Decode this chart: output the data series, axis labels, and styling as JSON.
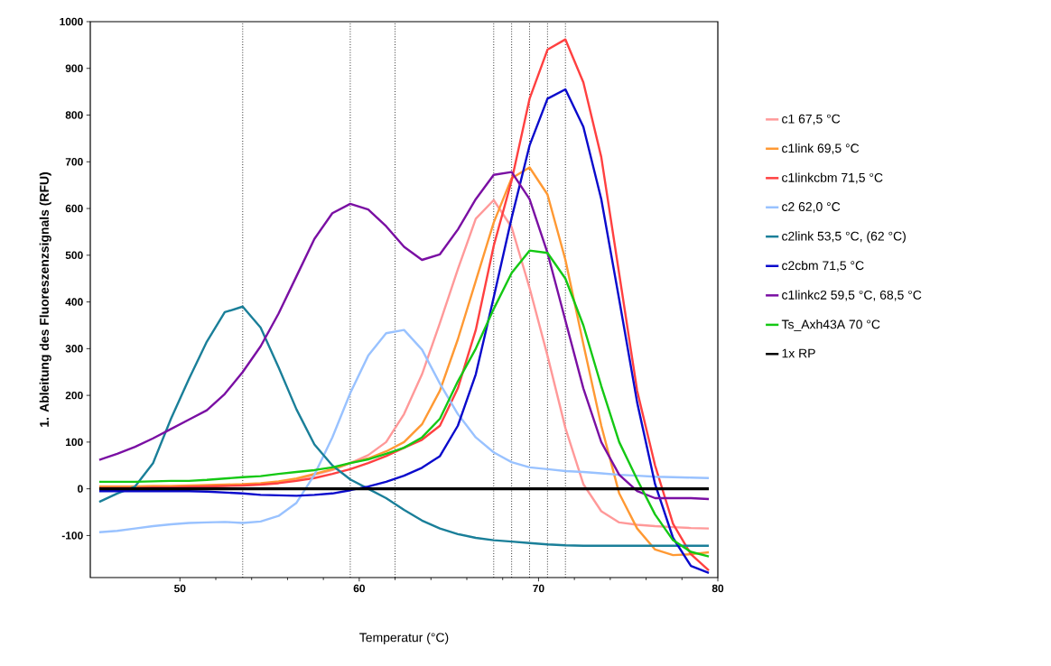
{
  "chart_data": {
    "type": "line",
    "xlabel": "Temperatur (°C)",
    "ylabel": "1. Ableitung des Fluoreszenzsignals (RFU)",
    "x": [
      45.5,
      46.5,
      47.5,
      48.5,
      49.5,
      50.5,
      51.5,
      52.5,
      53.5,
      54.5,
      55.5,
      56.5,
      57.5,
      58.5,
      59.5,
      60.5,
      61.5,
      62.5,
      63.5,
      64.5,
      65.5,
      66.5,
      67.5,
      68.5,
      69.5,
      70.5,
      71.5,
      72.5,
      73.5,
      74.5,
      75.5,
      76.5,
      77.5,
      78.5,
      79.5
    ],
    "xlim": [
      45,
      80
    ],
    "xticks": [
      50,
      60,
      70,
      80
    ],
    "ylim": [
      -190,
      1000
    ],
    "yticks": [
      -100,
      0,
      100,
      200,
      300,
      400,
      500,
      600,
      700,
      800,
      900,
      1000
    ],
    "legend": "right",
    "line_style": "solid",
    "ref_lines": [
      {
        "axis": "x",
        "value": 53.5,
        "color": "#000000",
        "line_style": "dotted"
      },
      {
        "axis": "x",
        "value": 59.5,
        "color": "#000000",
        "line_style": "dotted"
      },
      {
        "axis": "x",
        "value": 62,
        "color": "#000000",
        "line_style": "dotted"
      },
      {
        "axis": "x",
        "value": 67.5,
        "color": "#000000",
        "line_style": "dotted"
      },
      {
        "axis": "x",
        "value": 68.5,
        "color": "#000000",
        "line_style": "dotted"
      },
      {
        "axis": "x",
        "value": 69.5,
        "color": "#000000",
        "line_style": "dotted"
      },
      {
        "axis": "x",
        "value": 70.5,
        "color": "#000000",
        "line_style": "dotted"
      },
      {
        "axis": "x",
        "value": 71.5,
        "color": "#000000",
        "line_style": "dotted"
      }
    ],
    "series": [
      {
        "name": "c1  67,5 °C",
        "color": "#ff9999",
        "values": [
          null,
          null,
          null,
          null,
          null,
          null,
          6,
          7,
          8,
          10,
          13,
          20,
          30,
          40,
          55,
          72,
          100,
          160,
          245,
          355,
          470,
          578,
          618,
          560,
          430,
          285,
          130,
          10,
          -48,
          -72,
          -77,
          -80,
          -82,
          -84,
          -85
        ]
      },
      {
        "name": "c1link  69,5 °C",
        "color": "#ff9933",
        "values": [
          5,
          5,
          5,
          6,
          6,
          7,
          8,
          9,
          10,
          12,
          16,
          22,
          32,
          42,
          55,
          65,
          80,
          100,
          138,
          210,
          320,
          445,
          570,
          665,
          688,
          630,
          490,
          310,
          135,
          -10,
          -85,
          -130,
          -142,
          -140,
          -136
        ]
      },
      {
        "name": "c1linkcbm  71,5 °C",
        "color": "#ff4040",
        "values": [
          2,
          2,
          2,
          3,
          3,
          4,
          5,
          6,
          7,
          9,
          12,
          17,
          23,
          32,
          42,
          55,
          70,
          88,
          105,
          135,
          215,
          340,
          520,
          660,
          835,
          940,
          962,
          870,
          710,
          460,
          210,
          50,
          -75,
          -140,
          -175
        ]
      },
      {
        "name": "c2  62,0 °C",
        "color": "#99c2ff",
        "values": [
          -93,
          -90,
          -85,
          -80,
          -76,
          -73,
          -72,
          -71,
          -73,
          -70,
          -58,
          -30,
          30,
          110,
          205,
          285,
          333,
          340,
          298,
          225,
          160,
          110,
          78,
          57,
          46,
          42,
          38,
          36,
          33,
          30,
          28,
          26,
          25,
          24,
          23
        ]
      },
      {
        "name": "c2link  53,5 °C, (62 °C)",
        "color": "#1a7f99",
        "values": [
          -28,
          -10,
          5,
          55,
          150,
          235,
          315,
          378,
          390,
          345,
          260,
          170,
          95,
          50,
          20,
          0,
          -20,
          -45,
          -68,
          -85,
          -97,
          -105,
          -110,
          -113,
          -116,
          -119,
          -121,
          -122,
          -122,
          -122,
          -122,
          -122,
          -122,
          -122,
          -122
        ]
      },
      {
        "name": "c2cbm  71,5 °C",
        "color": "#0a0acc",
        "values": [
          -5,
          -5,
          -5,
          -5,
          -5,
          -5,
          -6,
          -8,
          -10,
          -13,
          -14,
          -15,
          -13,
          -10,
          -3,
          5,
          15,
          28,
          45,
          70,
          135,
          245,
          410,
          580,
          735,
          835,
          855,
          775,
          620,
          405,
          185,
          10,
          -105,
          -165,
          -180
        ]
      },
      {
        "name": "c1linkc2  59,5 °C, 68,5 °C",
        "color": "#7a0fa3",
        "values": [
          62,
          75,
          90,
          108,
          128,
          148,
          168,
          203,
          250,
          305,
          375,
          455,
          535,
          590,
          610,
          598,
          562,
          518,
          490,
          502,
          555,
          620,
          672,
          678,
          620,
          505,
          360,
          215,
          100,
          30,
          -5,
          -20,
          -20,
          -20,
          -22
        ]
      },
      {
        "name": "Ts_Axh43A  70 °C",
        "color": "#14c814",
        "values": [
          15,
          15,
          15,
          16,
          17,
          17,
          19,
          22,
          25,
          27,
          32,
          36,
          40,
          46,
          55,
          63,
          75,
          88,
          110,
          150,
          230,
          300,
          385,
          462,
          510,
          505,
          450,
          350,
          220,
          100,
          20,
          -55,
          -110,
          -135,
          -145
        ]
      },
      {
        "name": "1x RP",
        "color": "#000000",
        "values": [
          0,
          0,
          0,
          0,
          0,
          0,
          0,
          0,
          0,
          0,
          0,
          0,
          0,
          0,
          0,
          0,
          0,
          0,
          0,
          0,
          0,
          0,
          0,
          0,
          0,
          0,
          0,
          0,
          0,
          0,
          0,
          0,
          0,
          0,
          0
        ]
      }
    ]
  }
}
